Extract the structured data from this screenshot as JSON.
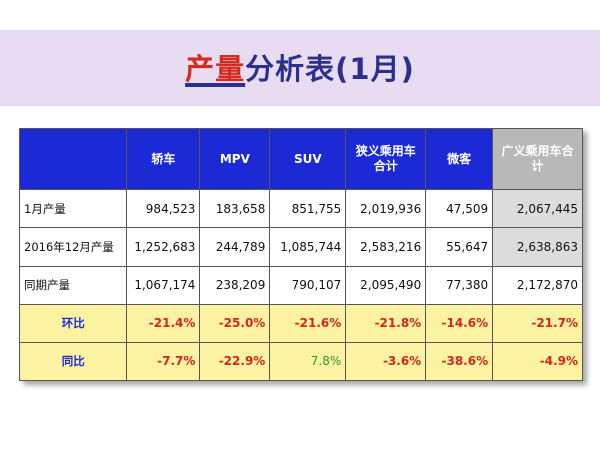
{
  "title": {
    "accent": "产量",
    "rest": "分析表(1月)"
  },
  "colors": {
    "header_blue": "#1c2ad6",
    "highlight_yellow": "#fbf3a2",
    "negative_red": "#d6251c",
    "positive_green": "#2e9a2e",
    "title_band": "#e8dcf2"
  },
  "table": {
    "headers": [
      "",
      "轿车",
      "MPV",
      "SUV",
      "狭义乘用车合计",
      "微客",
      "广义乘用车合计"
    ],
    "rows": [
      {
        "label": "1月产量",
        "values": [
          "984,523",
          "183,658",
          "851,755",
          "2,019,936",
          "47,509",
          "2,067,445"
        ]
      },
      {
        "label": "2016年12月产量",
        "values": [
          "1,252,683",
          "244,789",
          "1,085,744",
          "2,583,216",
          "55,647",
          "2,638,863"
        ]
      },
      {
        "label": "同期产量",
        "values": [
          "1,067,174",
          "238,209",
          "790,107",
          "2,095,490",
          "77,380",
          "2,172,870"
        ]
      },
      {
        "label": "环比",
        "values": [
          "-21.4%",
          "-25.0%",
          "-21.6%",
          "-21.8%",
          "-14.6%",
          "-21.7%"
        ]
      },
      {
        "label": "同比",
        "values": [
          "-7.7%",
          "-22.9%",
          "7.8%",
          "-3.6%",
          "-38.6%",
          "-4.9%"
        ]
      }
    ]
  }
}
